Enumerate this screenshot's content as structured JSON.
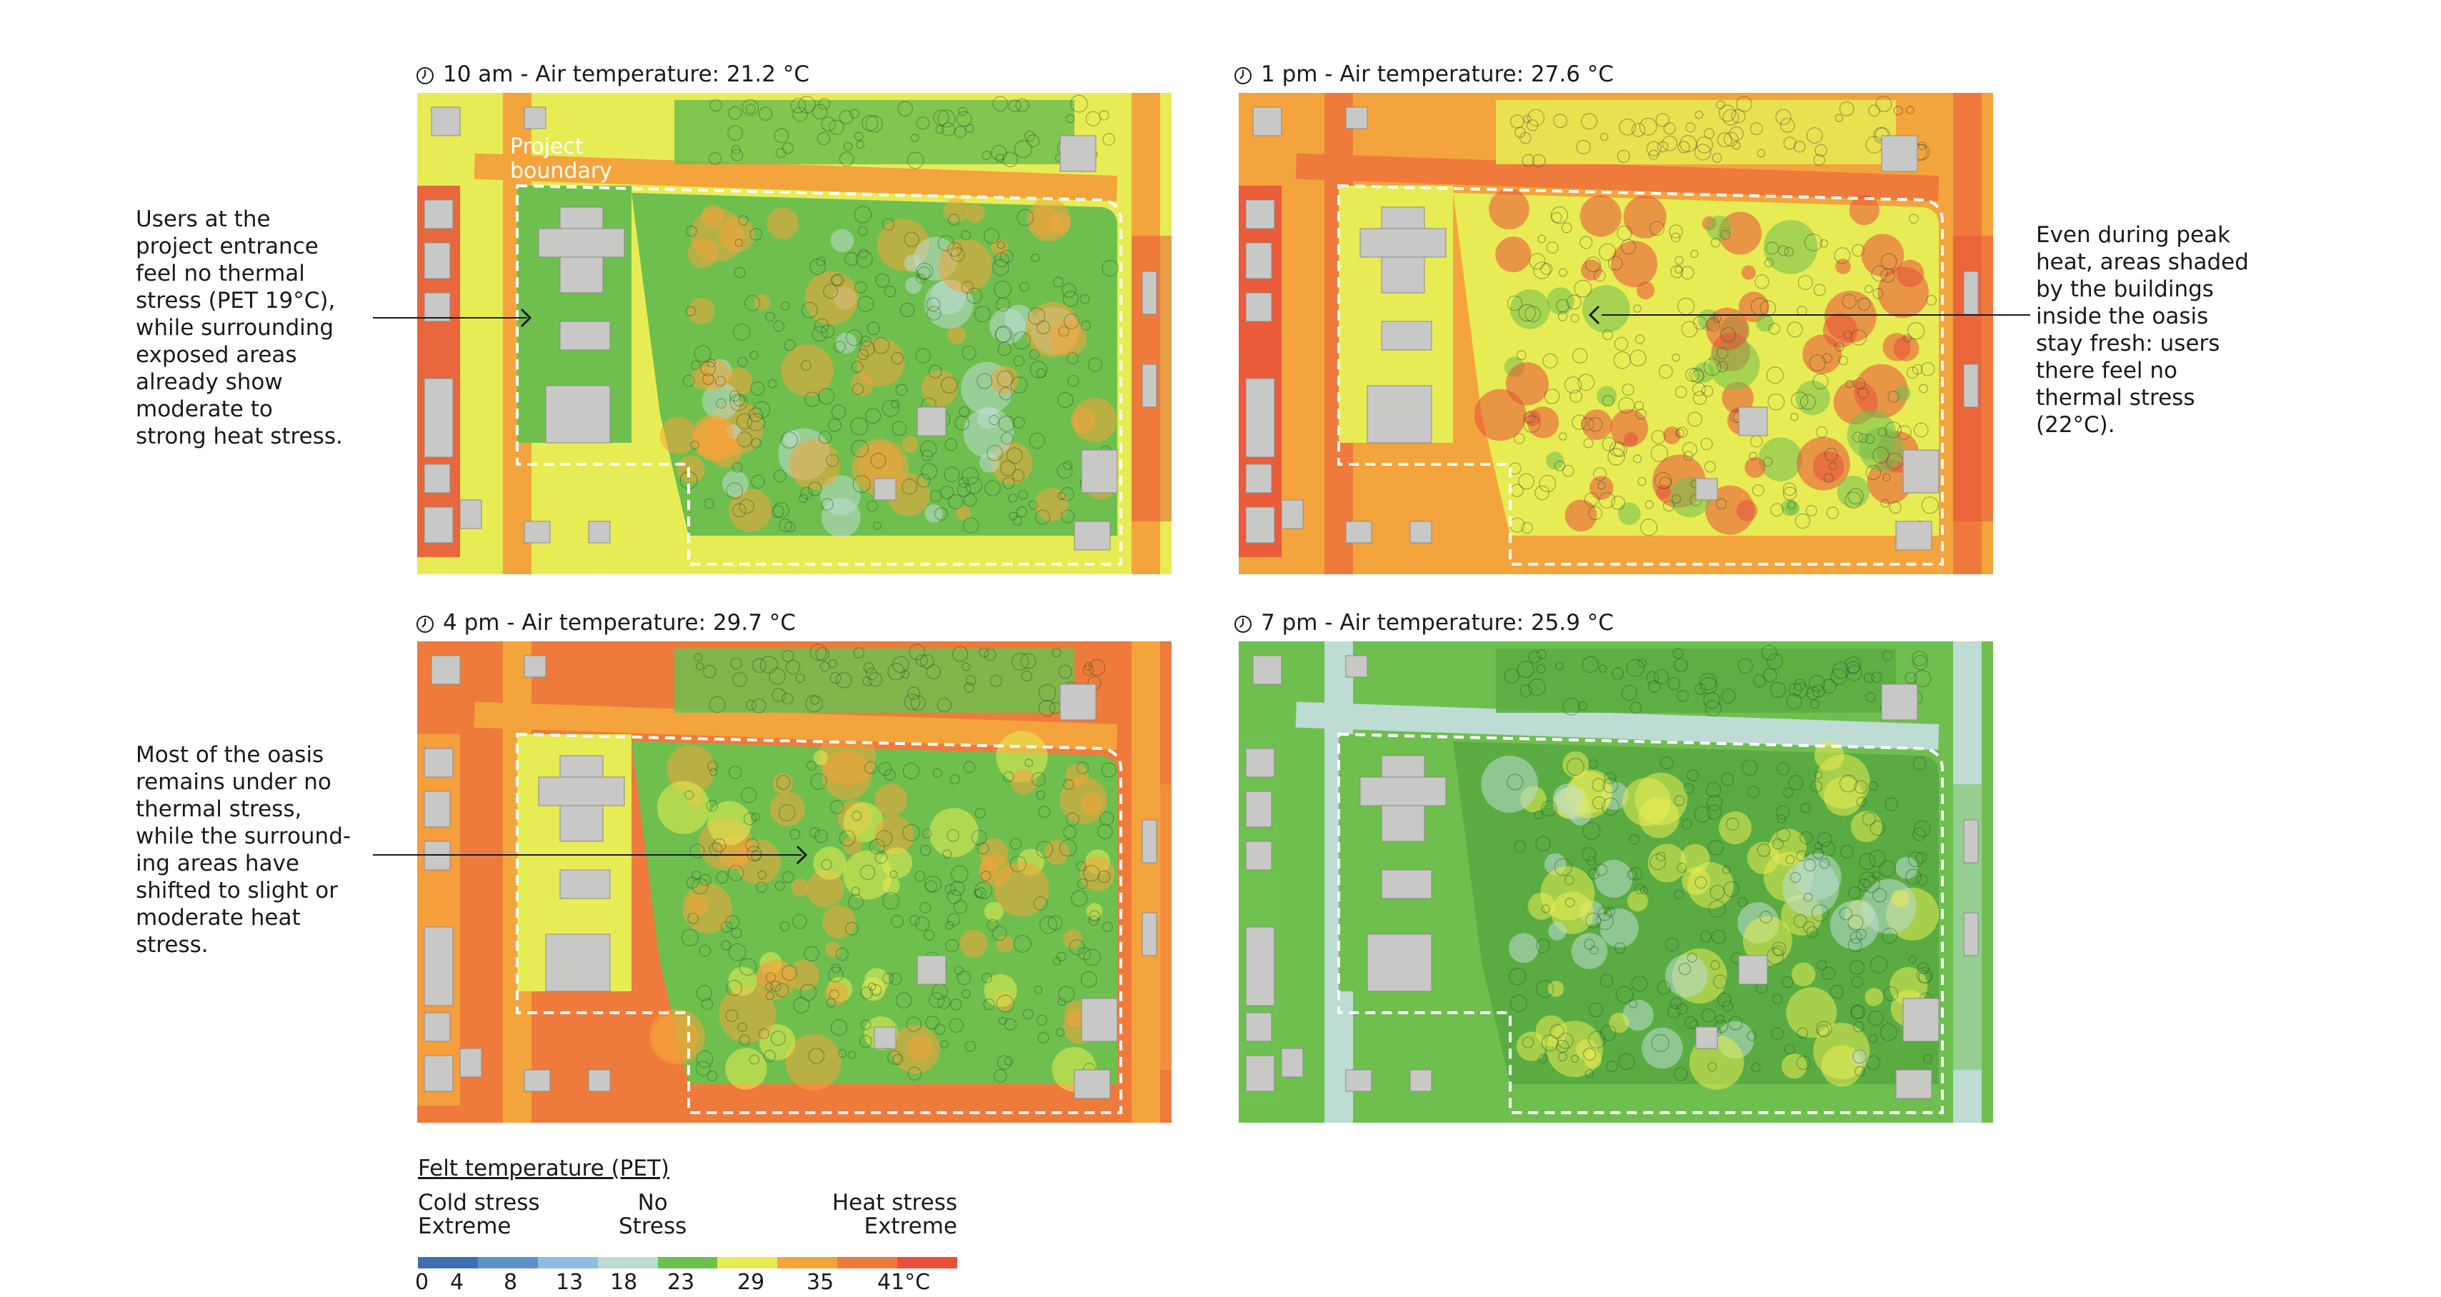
{
  "panels": [
    {
      "id": "p1",
      "title": "10 am - Air temperature: 21.2 °C",
      "scheme": "morning",
      "boundary_label": "Project\nboundary"
    },
    {
      "id": "p2",
      "title": "1 pm - Air temperature: 27.6 °C",
      "scheme": "noon"
    },
    {
      "id": "p3",
      "title": "4 pm - Air temperature: 29.7 °C",
      "scheme": "afternoon"
    },
    {
      "id": "p4",
      "title": "7 pm - Air temperature: 25.9 °C",
      "scheme": "evening"
    }
  ],
  "annotations": [
    {
      "id": "a1",
      "text": "Users at the\nproject entrance\nfeel no thermal\nstress (PET 19°C),\nwhile surrounding\nexposed areas\nalready show\nmoderate to\nstrong heat stress."
    },
    {
      "id": "a2",
      "text": "Even during peak\nheat, areas shaded\nby the buildings\ninside the oasis\nstay fresh: users\nthere feel no\nthermal stress\n(22°C)."
    },
    {
      "id": "a3",
      "text": "Most of the oasis\nremains under no\nthermal stress,\nwhile the surround-\ning areas have\nshifted to slight or\nmoderate heat\nstress."
    }
  ],
  "legend": {
    "title": "Felt temperature (PET)",
    "cold_label": "Cold stress\nExtreme",
    "no_label": "No\nStress",
    "heat_label": "Heat stress\nExtreme",
    "colors": [
      "#3f6fb0",
      "#5f93c8",
      "#8ebde0",
      "#bcdcd4",
      "#6fbf4f",
      "#e8ec54",
      "#f4a43c",
      "#ee7b3c",
      "#e8503a"
    ],
    "ticks": [
      "0",
      "4",
      "8",
      "13",
      "18",
      "23",
      "29",
      "35",
      "41°C"
    ]
  }
}
